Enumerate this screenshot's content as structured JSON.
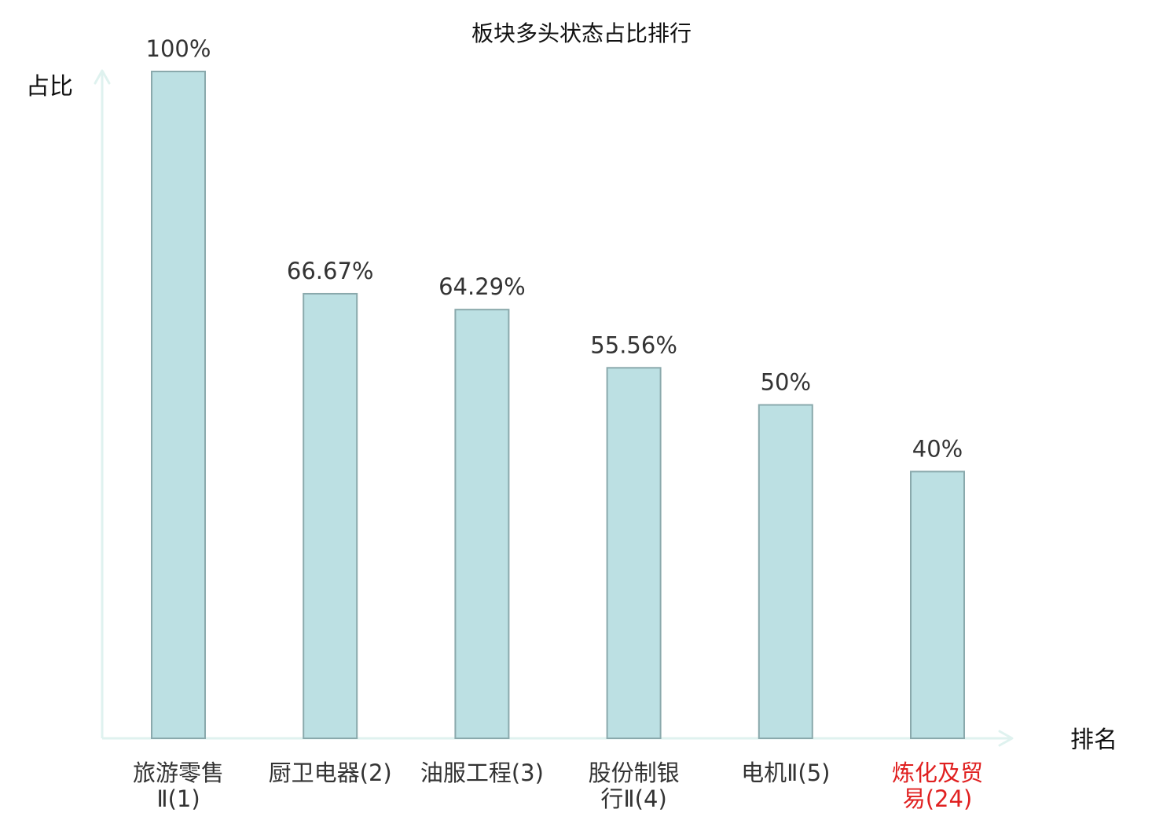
{
  "chart_data": {
    "type": "bar",
    "title": "板块多头状态占比排行",
    "xlabel": "排名",
    "ylabel": "占比",
    "ylim": [
      0,
      100
    ],
    "grid": false,
    "legend": "none",
    "categories": [
      {
        "lines": [
          "旅游零售",
          "Ⅱ(1)"
        ],
        "highlight": false
      },
      {
        "lines": [
          "厨卫电器(2)"
        ],
        "highlight": false
      },
      {
        "lines": [
          "油服工程(3)"
        ],
        "highlight": false
      },
      {
        "lines": [
          "股份制银",
          "行Ⅱ(4)"
        ],
        "highlight": false
      },
      {
        "lines": [
          "电机Ⅱ(5)"
        ],
        "highlight": false
      },
      {
        "lines": [
          "炼化及贸",
          "易(24)"
        ],
        "highlight": true
      }
    ],
    "values": [
      100,
      66.67,
      64.29,
      55.56,
      50,
      40
    ],
    "value_labels": [
      "100%",
      "66.67%",
      "64.29%",
      "55.56%",
      "50%",
      "40%"
    ],
    "colors": {
      "bar_fill": "#bce0e3",
      "bar_stroke": "#8aa9ac",
      "axis": "#dff2ef",
      "text": "#333333",
      "highlight_text": "#e02020"
    }
  }
}
